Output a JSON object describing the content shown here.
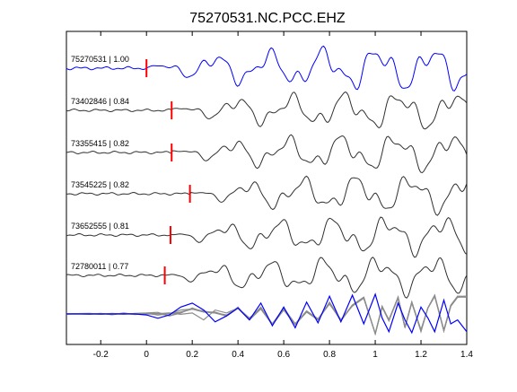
{
  "chart_data": {
    "type": "line",
    "title": "75270531.NC.PCC.EHZ",
    "xlabel": "",
    "ylabel": "",
    "xlim": [
      -0.35,
      1.4
    ],
    "xticks": [
      -0.2,
      0,
      0.2,
      0.4,
      0.6,
      0.8,
      1,
      1.2,
      1.4
    ],
    "xtick_labels": [
      "-0.2",
      "0",
      "0.2",
      "0.4",
      "0.6",
      "0.8",
      "1",
      "1.2",
      "1.4"
    ],
    "grid": false,
    "pick_marker_color": "#ff0000",
    "reference_color": "#0000ff",
    "trace_color": "#303030",
    "stack_color": "#8c8c8c",
    "traces": [
      {
        "label": "75270531 | 1.00",
        "pick_time": 0.0
      },
      {
        "label": "73402846 | 0.84",
        "pick_time": 0.11
      },
      {
        "label": "73355415 | 0.82",
        "pick_time": 0.11
      },
      {
        "label": "73545225 | 0.82",
        "pick_time": 0.19
      },
      {
        "label": "73652555 | 0.81",
        "pick_time": 0.105
      },
      {
        "label": "72780011 | 0.77",
        "pick_time": 0.08
      }
    ],
    "reference_waveform": {
      "x": [
        -0.35,
        -0.3,
        -0.25,
        -0.2,
        -0.15,
        -0.1,
        -0.05,
        0,
        0.05,
        0.1,
        0.15,
        0.2,
        0.25,
        0.3,
        0.35,
        0.4,
        0.45,
        0.5,
        0.55,
        0.6,
        0.65,
        0.7,
        0.75,
        0.8,
        0.85,
        0.9,
        0.95,
        1,
        1.03,
        1.06,
        1.1,
        1.13,
        1.16,
        1.2,
        1.23,
        1.26,
        1.3,
        1.33,
        1.36,
        1.4
      ],
      "y": [
        0,
        0,
        0,
        0,
        0,
        0.01,
        0,
        -0.05,
        -0.22,
        -0.05,
        0.35,
        0.55,
        0.2,
        -0.4,
        -0.1,
        0.3,
        -0.3,
        0.55,
        -0.6,
        0.35,
        -0.7,
        0.6,
        -0.45,
        0.9,
        -0.4,
        0.95,
        -0.5,
        1.0,
        -0.2,
        -0.9,
        0.55,
        -0.3,
        -0.95,
        0.35,
        -0.2,
        -0.9,
        0.7,
        -0.5,
        -0.3,
        -0.9
      ]
    },
    "aligned_waveforms": [
      {
        "x": [
          -0.35,
          -0.3,
          -0.25,
          -0.2,
          -0.15,
          -0.1,
          -0.05,
          0,
          0.05,
          0.1,
          0.15,
          0.2,
          0.25,
          0.3,
          0.35,
          0.4,
          0.45,
          0.5,
          0.55,
          0.6,
          0.65,
          0.7,
          0.75,
          0.8,
          0.85,
          0.9,
          0.95,
          1,
          1.03,
          1.06,
          1.1,
          1.13,
          1.16,
          1.2,
          1.23,
          1.26,
          1.3,
          1.33,
          1.36,
          1.4
        ],
        "y": [
          0,
          0.02,
          -0.02,
          0.03,
          -0.04,
          0.05,
          -0.03,
          0.04,
          -0.06,
          0.02,
          0.2,
          0.25,
          0.1,
          0.05,
          -0.1,
          0.35,
          -0.3,
          0.25,
          -0.5,
          0.3,
          -0.5,
          0.15,
          -0.25,
          0.55,
          -0.35,
          0.45,
          0.85,
          -1.0,
          0.4,
          -0.3,
          0.85,
          -0.7,
          0.6,
          -0.9,
          0.3,
          0.95,
          -0.85,
          0.4,
          0.9,
          0.85
        ]
      },
      {
        "x": [
          -0.35,
          -0.3,
          -0.25,
          -0.2,
          -0.15,
          -0.1,
          -0.05,
          0,
          0.05,
          0.1,
          0.15,
          0.2,
          0.25,
          0.3,
          0.35,
          0.4,
          0.45,
          0.5,
          0.55,
          0.6,
          0.65,
          0.7,
          0.75,
          0.8,
          0.85,
          0.9,
          0.95,
          1,
          1.03,
          1.06,
          1.1,
          1.13,
          1.16,
          1.2,
          1.23,
          1.26,
          1.3,
          1.33,
          1.36,
          1.4
        ],
        "y": [
          0,
          0.01,
          0.02,
          -0.02,
          0.03,
          -0.02,
          0.03,
          0.05,
          0.08,
          -0.1,
          0.05,
          0.3,
          0.1,
          0.1,
          -0.1,
          0.3,
          -0.25,
          0.35,
          -0.55,
          0.2,
          -0.55,
          0.1,
          -0.3,
          0.6,
          -0.3,
          0.4,
          0.8,
          -1.0,
          0.35,
          -0.3,
          0.85,
          -0.7,
          0.6,
          -0.8,
          0.3,
          0.95,
          -0.85,
          0.4,
          0.85,
          0.9
        ]
      },
      {
        "x": [
          -0.35,
          -0.3,
          -0.25,
          -0.2,
          -0.15,
          -0.1,
          -0.05,
          0,
          0.05,
          0.1,
          0.15,
          0.2,
          0.25,
          0.3,
          0.35,
          0.4,
          0.45,
          0.5,
          0.55,
          0.6,
          0.65,
          0.7,
          0.75,
          0.8,
          0.85,
          0.9,
          0.95,
          1,
          1.03,
          1.06,
          1.1,
          1.13,
          1.16,
          1.2,
          1.23,
          1.26,
          1.3,
          1.33,
          1.36,
          1.4
        ],
        "y": [
          0,
          0.01,
          -0.01,
          0.02,
          -0.01,
          0,
          0.02,
          -0.01,
          0.02,
          0.05,
          -0.02,
          0.05,
          -0.3,
          0.2,
          0.05,
          0.3,
          -0.2,
          0.25,
          -0.55,
          0.25,
          -0.5,
          0.1,
          -0.3,
          0.55,
          -0.35,
          0.45,
          0.8,
          -1.0,
          0.35,
          -0.35,
          0.85,
          -0.65,
          0.6,
          -0.85,
          0.3,
          0.9,
          -0.85,
          0.4,
          0.85,
          0.85
        ]
      },
      {
        "x": [
          -0.35,
          -0.3,
          -0.25,
          -0.2,
          -0.15,
          -0.1,
          -0.05,
          0,
          0.05,
          0.1,
          0.15,
          0.2,
          0.25,
          0.3,
          0.35,
          0.4,
          0.45,
          0.5,
          0.55,
          0.6,
          0.65,
          0.7,
          0.75,
          0.8,
          0.85,
          0.9,
          0.95,
          1,
          1.03,
          1.06,
          1.1,
          1.13,
          1.16,
          1.2,
          1.23,
          1.26,
          1.3,
          1.33,
          1.36,
          1.4
        ],
        "y": [
          0,
          0.02,
          0.03,
          -0.01,
          0.02,
          0.01,
          -0.02,
          0.03,
          0.02,
          -0.08,
          0.08,
          0.25,
          0.1,
          0.05,
          -0.05,
          0.3,
          -0.25,
          0.3,
          -0.5,
          0.25,
          -0.5,
          0.15,
          -0.25,
          0.5,
          -0.3,
          0.45,
          0.85,
          -1.0,
          0.35,
          -0.3,
          0.8,
          -0.65,
          0.6,
          -0.85,
          0.3,
          0.9,
          -0.8,
          0.45,
          0.9,
          0.9
        ]
      },
      {
        "x": [
          -0.35,
          -0.3,
          -0.25,
          -0.2,
          -0.15,
          -0.1,
          -0.05,
          0,
          0.05,
          0.1,
          0.15,
          0.2,
          0.25,
          0.3,
          0.35,
          0.4,
          0.45,
          0.5,
          0.55,
          0.6,
          0.65,
          0.7,
          0.75,
          0.8,
          0.85,
          0.9,
          0.95,
          1,
          1.03,
          1.06,
          1.1,
          1.13,
          1.16,
          1.2,
          1.23,
          1.26,
          1.3,
          1.33,
          1.36,
          1.4
        ],
        "y": [
          0,
          0,
          0,
          0,
          0,
          0,
          0,
          0,
          0,
          0.02,
          0.1,
          0.25,
          0.15,
          0.05,
          -0.1,
          0.3,
          -0.3,
          0.3,
          -0.5,
          0.25,
          -0.5,
          0.1,
          -0.3,
          0.55,
          -0.35,
          0.45,
          0.8,
          -1.0,
          0.35,
          -0.3,
          0.8,
          -0.7,
          0.55,
          -0.85,
          0.3,
          0.9,
          -0.85,
          0.4,
          0.85,
          0.9
        ]
      }
    ]
  }
}
